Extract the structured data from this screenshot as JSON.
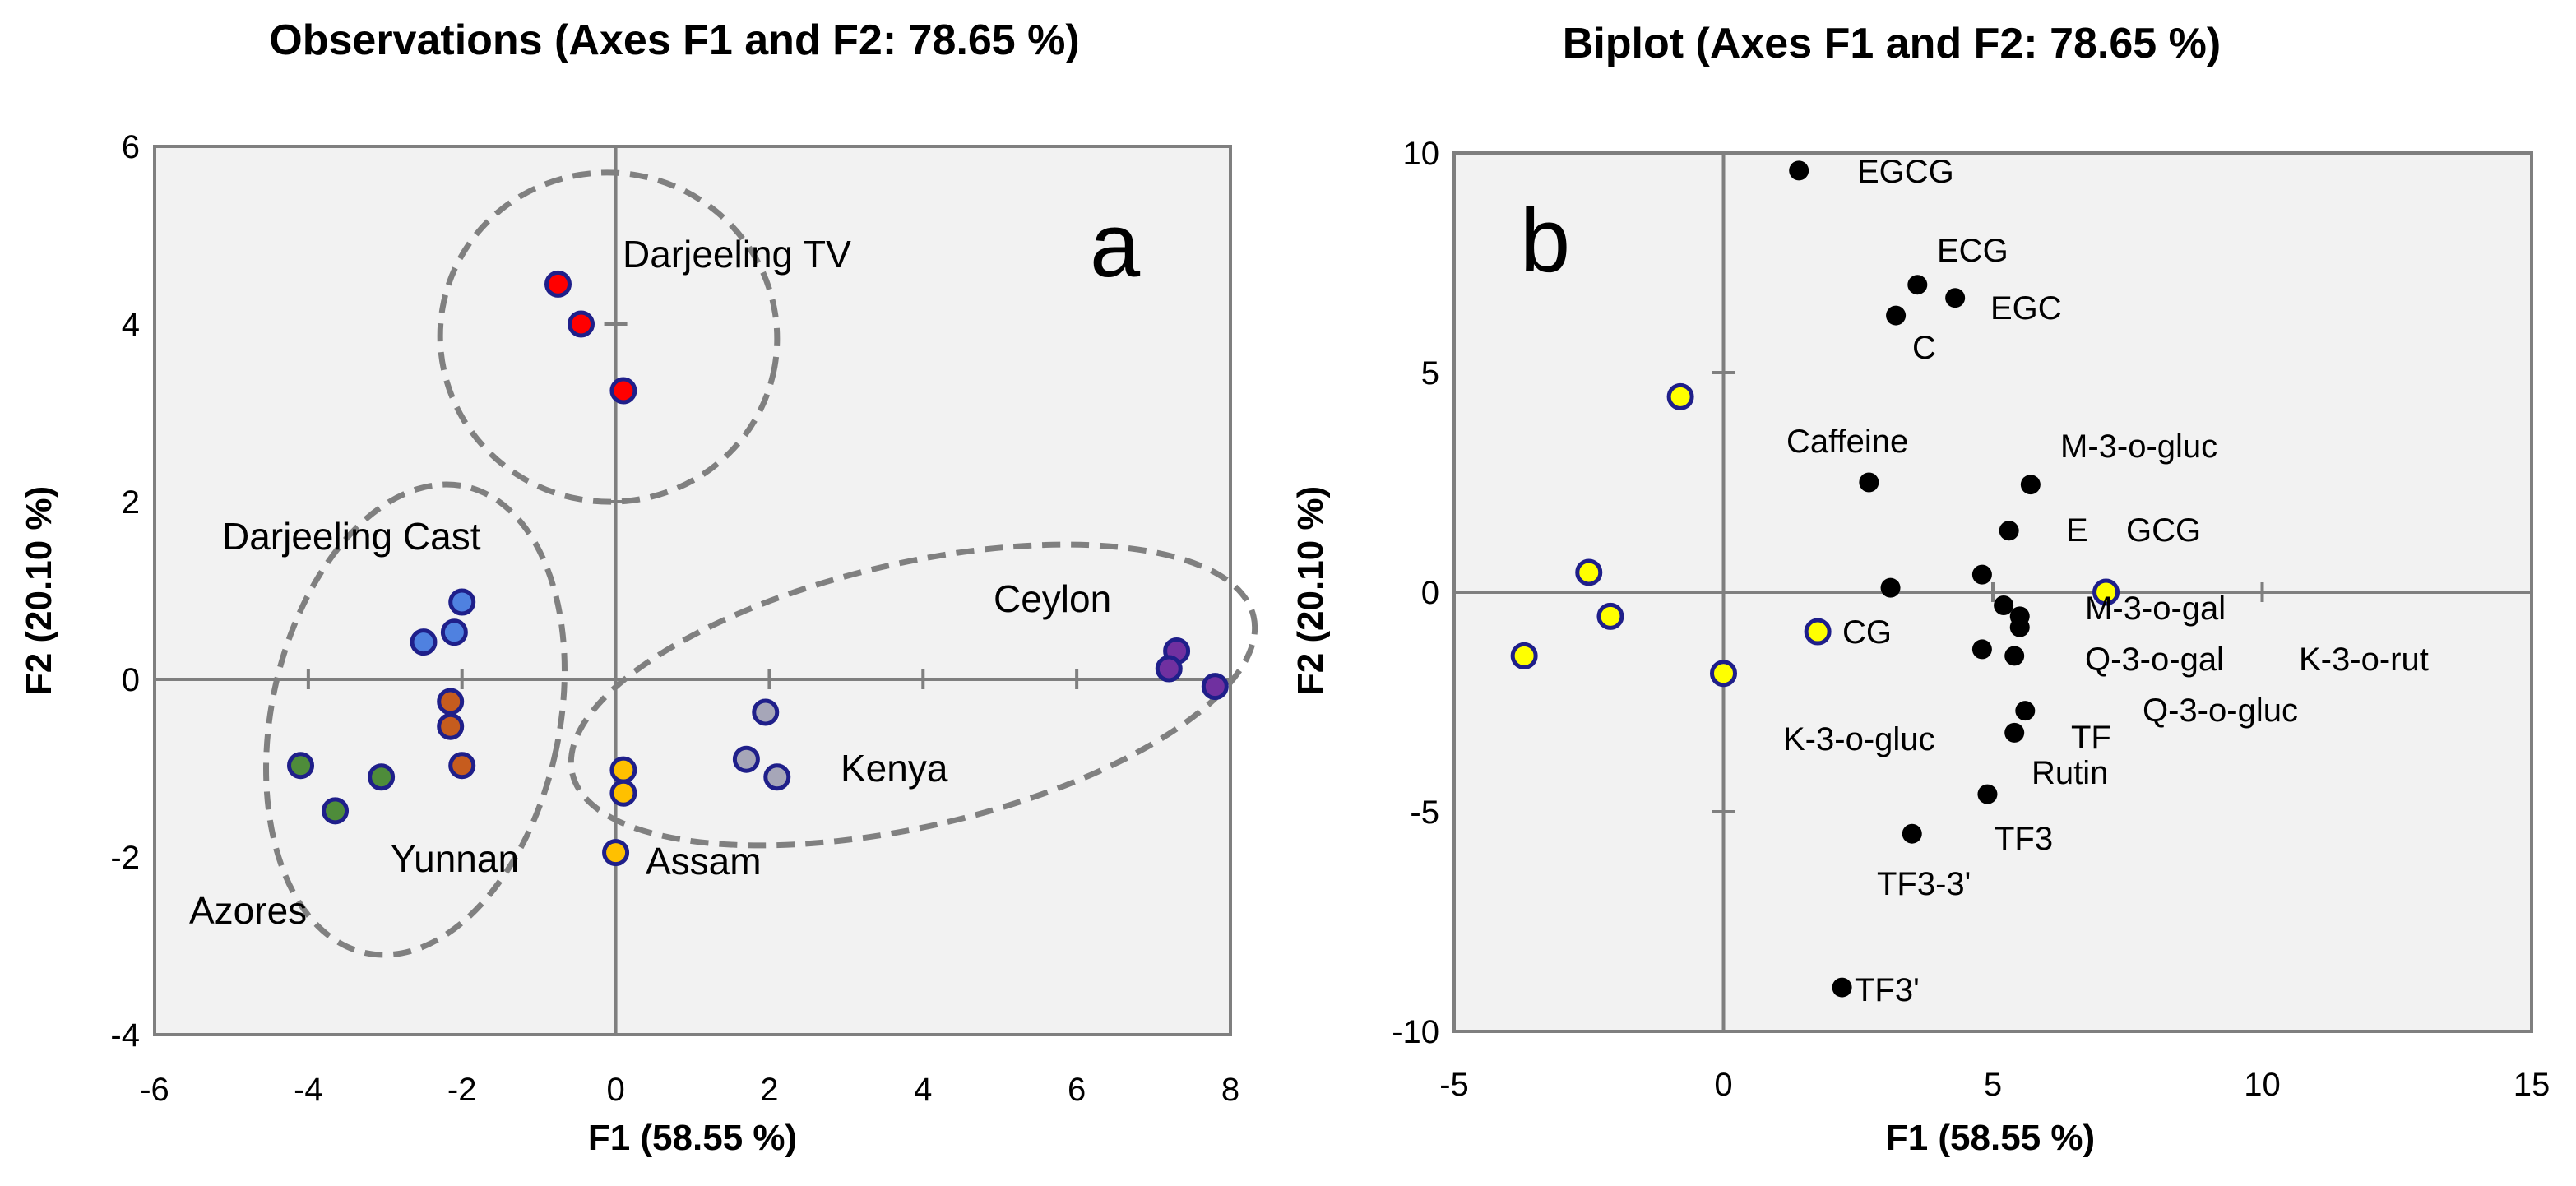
{
  "chart_data": [
    {
      "type": "scatter",
      "panel": "a",
      "title": "Observations (Axes F1 and F2: 78.65  %)",
      "xlabel": "F1 (58.55 %)",
      "ylabel": "F2 (20.10 %)",
      "xlim": [
        -6,
        8
      ],
      "ylim": [
        -4,
        6
      ],
      "xticks": [
        -6,
        -4,
        -2,
        0,
        2,
        4,
        6,
        8
      ],
      "yticks": [
        -4,
        -2,
        0,
        2,
        4,
        6
      ],
      "grid": false,
      "background": "#f2f2f2",
      "series": [
        {
          "color": "#ff0000",
          "points": [
            [
              -0.75,
              4.45
            ],
            [
              -0.45,
              4.0
            ],
            [
              0.1,
              3.25
            ]
          ]
        },
        {
          "color": "#4f81e0",
          "points": [
            [
              -2.5,
              0.42
            ],
            [
              -2.1,
              0.53
            ],
            [
              -2.0,
              0.87
            ]
          ]
        },
        {
          "color": "#c65c1e",
          "points": [
            [
              -2.15,
              -0.25
            ],
            [
              -2.15,
              -0.53
            ],
            [
              -2.0,
              -0.97
            ]
          ]
        },
        {
          "color": "#4e8c3a",
          "points": [
            [
              -4.1,
              -0.97
            ],
            [
              -3.05,
              -1.1
            ],
            [
              -3.65,
              -1.48
            ]
          ]
        },
        {
          "color": "#ffc000",
          "points": [
            [
              0.1,
              -1.02
            ],
            [
              0.1,
              -1.28
            ],
            [
              0.0,
              -1.95
            ]
          ]
        },
        {
          "color": "#a6a6b8",
          "points": [
            [
              1.95,
              -0.37
            ],
            [
              1.7,
              -0.9
            ],
            [
              2.1,
              -1.1
            ]
          ]
        },
        {
          "color": "#7030a0",
          "points": [
            [
              7.3,
              0.32
            ],
            [
              7.2,
              0.12
            ],
            [
              7.8,
              -0.08
            ]
          ]
        }
      ],
      "group_labels": [
        "Darjeeling TV",
        "Darjeeling Cast",
        "Ceylon",
        "Kenya",
        "Assam",
        "Yunnan",
        "Azores"
      ],
      "panel_letter": "a"
    },
    {
      "type": "scatter",
      "panel": "b",
      "title": "Biplot (Axes F1 and F2: 78.65  %)",
      "xlabel": "F1 (58.55 %)",
      "ylabel": "F2 (20.10 %)",
      "xlim": [
        -5,
        15
      ],
      "ylim": [
        -10,
        10
      ],
      "xticks": [
        -5,
        0,
        5,
        10,
        15
      ],
      "yticks": [
        -10,
        -5,
        0,
        5,
        10
      ],
      "grid": false,
      "background": "#f2f2f2",
      "observations": {
        "color": "#ffff00",
        "points": [
          [
            -0.8,
            4.45
          ],
          [
            -2.5,
            0.45
          ],
          [
            -2.1,
            -0.55
          ],
          [
            -3.7,
            -1.45
          ],
          [
            1.75,
            -0.9
          ],
          [
            0.0,
            -1.85
          ],
          [
            7.1,
            0.0
          ]
        ]
      },
      "variables": {
        "color": "#000000",
        "points": [
          {
            "label": "EGCG",
            "x": 1.4,
            "y": 9.6
          },
          {
            "label": "ECG",
            "x": 3.6,
            "y": 7.0
          },
          {
            "label": "EGC",
            "x": 4.3,
            "y": 6.7
          },
          {
            "label": "C",
            "x": 3.2,
            "y": 6.3
          },
          {
            "label": "Caffeine",
            "x": 2.7,
            "y": 2.5
          },
          {
            "label": "M-3-o-gluc",
            "x": 5.7,
            "y": 2.45
          },
          {
            "label": "E",
            "x": 5.3,
            "y": 1.4
          },
          {
            "label": "GCG",
            "x": 4.8,
            "y": 0.4
          },
          {
            "label": "CG",
            "x": 3.1,
            "y": 0.1
          },
          {
            "label": "M-3-o-gal",
            "x": 5.2,
            "y": -0.3
          },
          {
            "label": "Q-3-o-gal",
            "x": 5.5,
            "y": -0.8
          },
          {
            "label": "K-3-o-rut",
            "x": 5.5,
            "y": -0.55
          },
          {
            "label": "Q-3-o-gluc",
            "x": 5.6,
            "y": -2.7
          },
          {
            "label": "K-3-o-gluc",
            "x": 4.8,
            "y": -1.3
          },
          {
            "label": "TF",
            "x": 5.4,
            "y": -1.45
          },
          {
            "label": "Rutin",
            "x": 5.4,
            "y": -3.2
          },
          {
            "label": "TF3",
            "x": 4.9,
            "y": -4.6
          },
          {
            "label": "TF3-3'",
            "x": 3.5,
            "y": -5.5
          },
          {
            "label": "TF3'",
            "x": 2.2,
            "y": -9.0
          }
        ]
      },
      "panel_letter": "b"
    }
  ]
}
